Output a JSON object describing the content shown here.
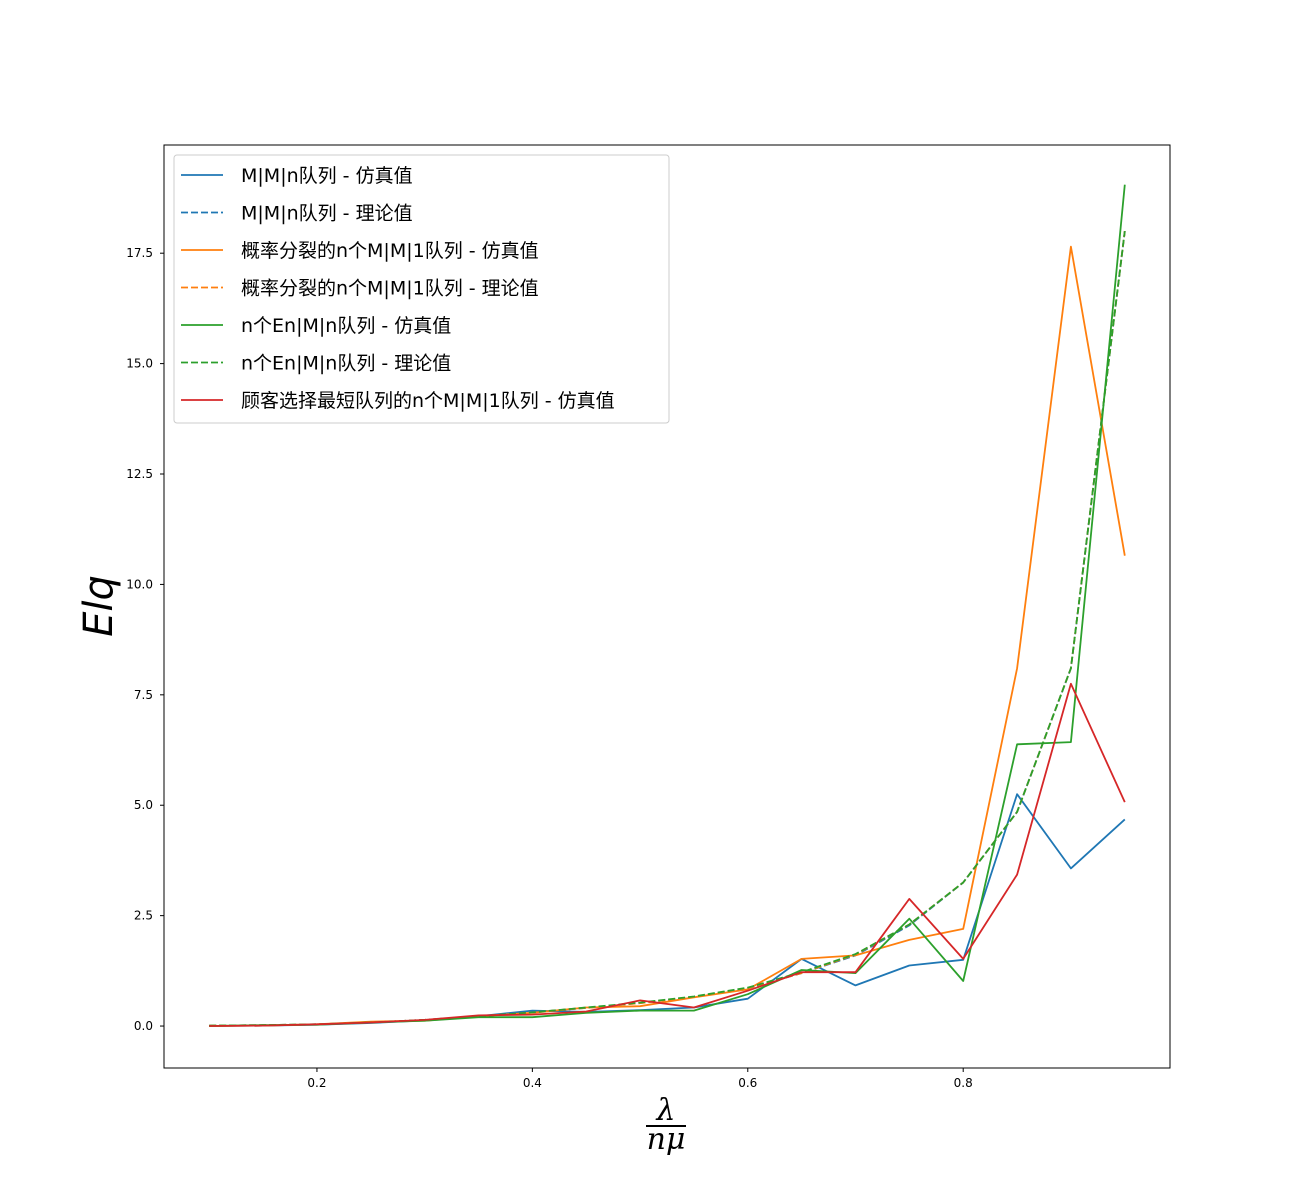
{
  "chart_data": {
    "type": "line",
    "xlabel_numerator": "λ",
    "xlabel_denominator": "nμ",
    "ylabel": "Elq",
    "xlim": [
      0.058,
      0.992
    ],
    "ylim": [
      -0.95,
      19.95
    ],
    "xticks": [
      0.2,
      0.4,
      0.6,
      0.8
    ],
    "xtick_labels": [
      "0.2",
      "0.4",
      "0.6",
      "0.8"
    ],
    "yticks": [
      0.0,
      2.5,
      5.0,
      7.5,
      10.0,
      12.5,
      15.0,
      17.5
    ],
    "ytick_labels": [
      "0.0",
      "2.5",
      "5.0",
      "7.5",
      "10.0",
      "12.5",
      "15.0",
      "17.5"
    ],
    "grid": false,
    "legend_position": "upper-left",
    "x": [
      0.1,
      0.15,
      0.2,
      0.25,
      0.3,
      0.35,
      0.4,
      0.45,
      0.5,
      0.55,
      0.6,
      0.65,
      0.7,
      0.75,
      0.8,
      0.85,
      0.9,
      0.95
    ],
    "series": [
      {
        "name": "M|M|n队列 - 仿真值",
        "color": "#1f77b4",
        "dash": "solid",
        "values": [
          0.0,
          0.01,
          0.03,
          0.07,
          0.13,
          0.22,
          0.35,
          0.32,
          0.36,
          0.42,
          0.62,
          1.52,
          0.92,
          1.37,
          1.5,
          5.25,
          3.57,
          4.68
        ]
      },
      {
        "name": "M|M|n队列 - 理论值",
        "color": "#1f77b4",
        "dash": "dashed",
        "values": [
          0.01,
          0.02,
          0.04,
          0.08,
          0.14,
          0.22,
          0.31,
          0.41,
          0.52,
          0.66,
          0.85,
          1.2,
          1.6,
          2.28,
          3.25,
          4.85,
          8.1,
          18.0
        ]
      },
      {
        "name": "概率分裂的n个M|M|1队列 - 仿真值",
        "color": "#ff7f0e",
        "dash": "solid",
        "values": [
          0.0,
          0.01,
          0.04,
          0.1,
          0.12,
          0.22,
          0.3,
          0.42,
          0.45,
          0.65,
          0.83,
          1.52,
          1.6,
          1.95,
          2.2,
          8.1,
          17.65,
          10.65
        ]
      },
      {
        "name": "概率分裂的n个M|M|1队列 - 理论值",
        "color": "#ff7f0e",
        "dash": "dashed",
        "values": [
          0.01,
          0.02,
          0.04,
          0.08,
          0.14,
          0.22,
          0.31,
          0.41,
          0.52,
          0.66,
          0.86,
          1.2,
          1.62,
          2.3,
          3.25,
          4.85,
          8.1,
          18.0
        ]
      },
      {
        "name": "n个En|M|n队列 - 仿真值",
        "color": "#2ca02c",
        "dash": "solid",
        "values": [
          0.0,
          0.02,
          0.03,
          0.08,
          0.12,
          0.2,
          0.2,
          0.3,
          0.35,
          0.35,
          0.72,
          1.27,
          1.2,
          2.43,
          1.02,
          6.38,
          6.43,
          19.05
        ]
      },
      {
        "name": "n个En|M|n队列 - 理论值",
        "color": "#2ca02c",
        "dash": "dashed",
        "values": [
          0.01,
          0.02,
          0.04,
          0.08,
          0.14,
          0.22,
          0.31,
          0.42,
          0.53,
          0.67,
          0.87,
          1.22,
          1.63,
          2.3,
          3.25,
          4.85,
          8.1,
          18.0
        ]
      },
      {
        "name": "顾客选择最短队列的n个M|M|1队列 - 仿真值",
        "color": "#d62728",
        "dash": "solid",
        "values": [
          0.0,
          0.01,
          0.04,
          0.08,
          0.14,
          0.24,
          0.26,
          0.33,
          0.58,
          0.42,
          0.8,
          1.22,
          1.22,
          2.88,
          1.52,
          3.43,
          7.75,
          5.07
        ]
      }
    ]
  }
}
